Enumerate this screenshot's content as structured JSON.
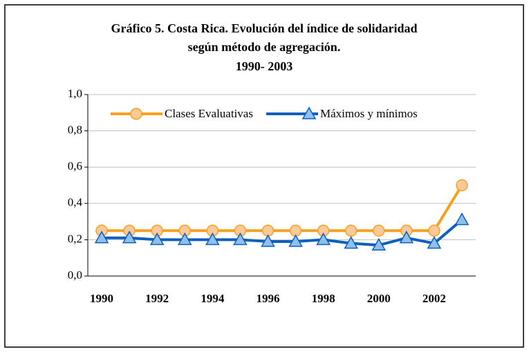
{
  "chart_data": {
    "type": "line",
    "title": [
      "Gráfico 5. Costa Rica. Evolución del índice de solidaridad",
      "según método de agregación.",
      "1990- 2003"
    ],
    "categories": [
      "1990",
      null,
      "1992",
      null,
      "1994",
      null,
      "1996",
      null,
      "1998",
      null,
      "2000",
      null,
      "2002",
      null
    ],
    "series": [
      {
        "name": "Clases Evaluativas",
        "color": "#f5a01e",
        "marker": "circle",
        "values": [
          0.25,
          0.25,
          0.25,
          0.25,
          0.25,
          0.25,
          0.25,
          0.25,
          0.25,
          0.25,
          0.25,
          0.25,
          0.25,
          0.5
        ]
      },
      {
        "name": "Máximos y mínimos",
        "color": "#0a5fbf",
        "marker": "triangle",
        "values": [
          0.21,
          0.21,
          0.2,
          0.2,
          0.2,
          0.2,
          0.19,
          0.19,
          0.2,
          0.18,
          0.17,
          0.21,
          0.18,
          0.31
        ]
      }
    ],
    "ylim": [
      0,
      1
    ],
    "yticks": [
      {
        "value": 0,
        "label": "0,0"
      },
      {
        "value": 0.2,
        "label": "0,2"
      },
      {
        "value": 0.4,
        "label": "0,4"
      },
      {
        "value": 0.6,
        "label": "0,6"
      },
      {
        "value": 0.8,
        "label": "0,8"
      },
      {
        "value": 1,
        "label": "1,0"
      }
    ],
    "grid": true,
    "legend": "top"
  }
}
